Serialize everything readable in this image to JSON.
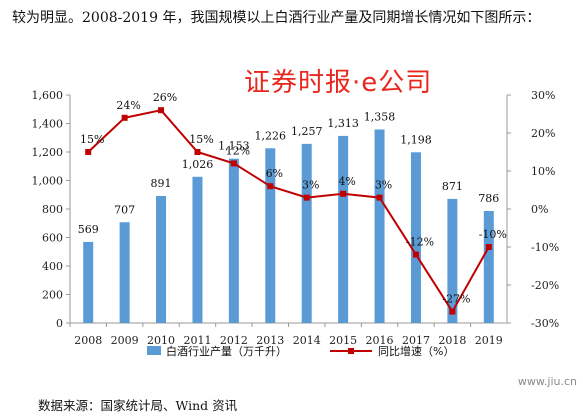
{
  "intro_text": "较为明显。2008-2019 年，我国规模以上白酒行业产量及同期增长情况如下图所示：",
  "watermark": "证券时报·e公司",
  "source": "数据来源：国家统计局、Wind 资讯",
  "site": "www.jiu.cn",
  "colors": {
    "bar": "#5b9bd5",
    "line": "#c00000"
  },
  "chart_data": {
    "type": "bar",
    "categories": [
      "2008",
      "2009",
      "2010",
      "2011",
      "2012",
      "2013",
      "2014",
      "2015",
      "2016",
      "2017",
      "2018",
      "2019"
    ],
    "series": [
      {
        "name": "白酒行业产量（万千升）",
        "type": "bar",
        "axis": "left",
        "values": [
          569,
          707,
          891,
          1026,
          1153,
          1226,
          1257,
          1313,
          1358,
          1198,
          871,
          786
        ],
        "labels": [
          "569",
          "707",
          "891",
          "1,026",
          "1,153",
          "1,226",
          "1,257",
          "1,313",
          "1,358",
          "1,198",
          "871",
          "786"
        ]
      },
      {
        "name": "同比增速（%）",
        "type": "line",
        "axis": "right",
        "values": [
          15,
          24,
          26,
          15,
          12,
          6,
          3,
          4,
          3,
          -12,
          -27,
          -10
        ],
        "labels": [
          "15%",
          "24%",
          "26%",
          "15%",
          "12%",
          "6%",
          "3%",
          "4%",
          "3%",
          "-12%",
          "-27%",
          "-10%"
        ]
      }
    ],
    "y_left": {
      "min": 0,
      "max": 1600,
      "ticks": [
        "0",
        "200",
        "400",
        "600",
        "800",
        "1,000",
        "1,200",
        "1,400",
        "1,600"
      ]
    },
    "y_right": {
      "min": -30,
      "max": 30,
      "ticks": [
        "-30%",
        "-20%",
        "-10%",
        "0%",
        "10%",
        "20%",
        "30%"
      ]
    },
    "grid": false,
    "legend_position": "bottom"
  }
}
